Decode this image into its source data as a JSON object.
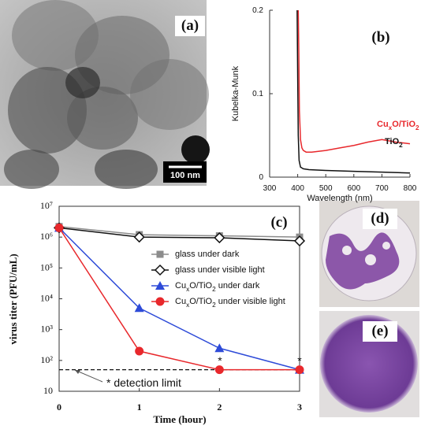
{
  "panels": {
    "a": {
      "label": "(a)",
      "scale_bar": "100 nm"
    },
    "d": {
      "label": "(d)"
    },
    "e": {
      "label": "(e)"
    }
  },
  "chart_data": [
    {
      "type": "line",
      "label": "(b)",
      "x_label": "Wavelength (nm)",
      "y_label": "Kubelka-Munk",
      "xlim": [
        300,
        800
      ],
      "xticks": [
        300,
        400,
        500,
        600,
        700,
        800
      ],
      "ylim": [
        0,
        0.2
      ],
      "yticks": [
        0,
        0.1,
        0.2
      ],
      "series": [
        {
          "name": "CuxO/TiO2",
          "color": "#e8282c",
          "x": [
            402,
            404,
            406,
            410,
            415,
            420,
            430,
            450,
            500,
            550,
            600,
            650,
            700,
            750,
            800
          ],
          "values": [
            0.2,
            0.15,
            0.08,
            0.045,
            0.035,
            0.032,
            0.03,
            0.03,
            0.032,
            0.035,
            0.038,
            0.042,
            0.045,
            0.042,
            0.04
          ]
        },
        {
          "name": "TiO2",
          "color": "#111111",
          "x": [
            398,
            400,
            402,
            405,
            410,
            420,
            440,
            500,
            600,
            700,
            800
          ],
          "values": [
            0.2,
            0.12,
            0.05,
            0.02,
            0.012,
            0.01,
            0.009,
            0.008,
            0.007,
            0.006,
            0.005
          ]
        }
      ]
    },
    {
      "type": "line",
      "label": "(c)",
      "x_label": "Time (hour)",
      "y_label": "virus titer (PFU/mL)",
      "log_y": true,
      "legend": "center-right",
      "x": [
        0,
        1,
        2,
        3
      ],
      "xlim": [
        0,
        3
      ],
      "xticks": [
        0,
        1,
        2,
        3
      ],
      "ylim": [
        10,
        10000000
      ],
      "yticks": [
        10,
        {
          "value": 100,
          "label": "10²"
        },
        {
          "value": 1000,
          "label": "10³"
        },
        {
          "value": 10000,
          "label": "10⁴"
        },
        {
          "value": 100000,
          "label": "10⁵"
        },
        {
          "value": 1000000,
          "label": "10⁶"
        },
        {
          "value": 10000000,
          "label": "10⁷"
        }
      ],
      "detection_limit": 50,
      "annotations": [
        "*",
        "*",
        "* detection limit"
      ],
      "series": [
        {
          "name": "glass under dark",
          "color": "#8c8c8c",
          "marker": "square",
          "values": [
            2200000,
            1200000,
            1100000,
            1000000
          ]
        },
        {
          "name": "glass under visible light",
          "color": "#111111",
          "marker": "diamond",
          "values": [
            2000000,
            1000000,
            950000,
            750000
          ]
        },
        {
          "name": "CuxO/TiO2 under dark",
          "color": "#2e4bd8",
          "marker": "triangle",
          "values": [
            2000000,
            5000,
            250,
            50
          ]
        },
        {
          "name": "CuxO/TiO2 under visible light",
          "color": "#e8282c",
          "marker": "circle",
          "values": [
            2000000,
            200,
            50,
            50
          ]
        }
      ]
    }
  ]
}
